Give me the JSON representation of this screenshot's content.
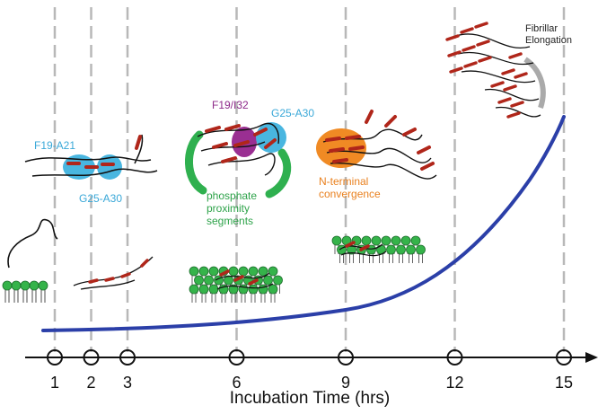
{
  "axis": {
    "title": "Incubation Time (hrs)",
    "ticks": [
      {
        "value": 1,
        "label": "1"
      },
      {
        "value": 2,
        "label": "2"
      },
      {
        "value": 3,
        "label": "3"
      },
      {
        "value": 6,
        "label": "6"
      },
      {
        "value": 9,
        "label": "9"
      },
      {
        "value": 12,
        "label": "12"
      },
      {
        "value": 15,
        "label": "15"
      }
    ]
  },
  "annotations": {
    "f19_a21": "F19-A21",
    "g25_a30_left": "G25-A30",
    "f19_i32": "F19/I32",
    "g25_a30_right": "G25-A30",
    "phosphate_line1": "phosphate",
    "phosphate_line2": "proximity",
    "phosphate_line3": "segments",
    "nterm_line1": "N-terminal",
    "nterm_line2": "convergence",
    "fibrillar_line1": "Fibrillar",
    "fibrillar_line2": "Elongation"
  },
  "colors": {
    "curve": "#2b3fa8",
    "contact_cyan": "#49b6e0",
    "contact_magenta": "#9a2f92",
    "phosphate_green": "#2fb04f",
    "orange": "#f08a24",
    "arrow_red": "#d9341f",
    "lipid_green": "#35b34a",
    "guide_gray": "#b8b8b8",
    "cyan_text": "#3aa8d8",
    "magenta_text": "#8e2a8a",
    "green_text": "#2ea34a",
    "orange_text": "#e9801e"
  },
  "icons": {
    "tick_marker": "circle-marker-icon",
    "arrow": "axis-arrowhead-icon"
  }
}
